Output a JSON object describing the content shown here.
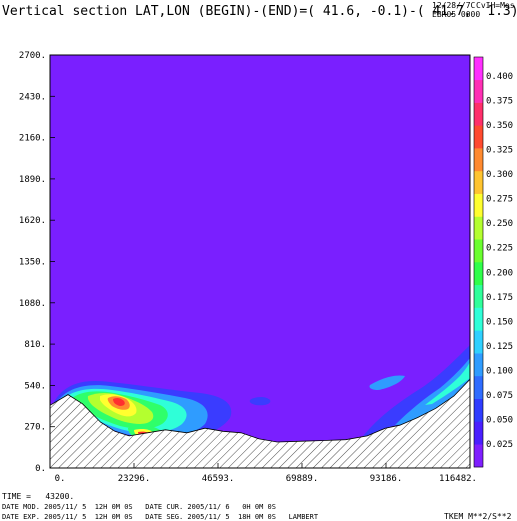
{
  "header": {
    "title": "Vertical section LAT,LON (BEGIN)-(END)=( 41.6, -0.1)-( 41.7,  1.3)",
    "top_right_line1": "12/28//7C",
    "top_right_line2": "EBR05 0000",
    "top_right_line3": "CvIH=Mes"
  },
  "footer": {
    "time": "TIME =   43200.",
    "line1": "DATE MOD. 2005/11/ 5  12H 0M 0S   DATE CUR. 2005/11/ 6   0H 0M 0S",
    "line2": "DATE EXP. 2005/11/ 5  12H 0M 0S   DATE SEG. 2005/11/ 5  18H 0M 0S   LAMBERT",
    "units": "TKEM M**2/S**2"
  },
  "chart_data": {
    "type": "contour",
    "title": "Vertical section LAT,LON (BEGIN)-(END)=( 41.6, -0.1)-( 41.7,  1.3)",
    "variable": "TKEM",
    "units": "M**2/S**2",
    "x_ticks": [
      "0.",
      "23296.",
      "46593.",
      "69889.",
      "93186.",
      "116482."
    ],
    "y_ticks": [
      "0.",
      "270.",
      "540.",
      "810.",
      "1080.",
      "1350.",
      "1620.",
      "1890.",
      "2160.",
      "2430.",
      "2700."
    ],
    "xlim": [
      0,
      116482
    ],
    "ylim": [
      0,
      2700
    ],
    "colorbar": {
      "levels": [
        "0.025",
        "0.050",
        "0.075",
        "0.100",
        "0.125",
        "0.150",
        "0.175",
        "0.200",
        "0.225",
        "0.250",
        "0.275",
        "0.300",
        "0.325",
        "0.350",
        "0.375",
        "0.400"
      ],
      "colors": [
        "#7f1fff",
        "#4a1fff",
        "#2f3cff",
        "#2f6cff",
        "#2f9cff",
        "#2fd0ff",
        "#2fffd8",
        "#2fff9a",
        "#2fff4a",
        "#6aff2f",
        "#b4ff2f",
        "#ffff2f",
        "#ffc42f",
        "#ff8a2f",
        "#ff4a2f",
        "#ff2f6a",
        "#ff2fb4",
        "#ff2fff"
      ]
    },
    "background_color": "#7a1fff",
    "terrain": [
      [
        0,
        410
      ],
      [
        5000,
        480
      ],
      [
        9000,
        420
      ],
      [
        14000,
        300
      ],
      [
        18000,
        240
      ],
      [
        22000,
        210
      ],
      [
        27000,
        230
      ],
      [
        32000,
        250
      ],
      [
        38000,
        230
      ],
      [
        43000,
        260
      ],
      [
        48000,
        240
      ],
      [
        53000,
        230
      ],
      [
        58000,
        190
      ],
      [
        63000,
        170
      ],
      [
        70000,
        175
      ],
      [
        76000,
        180
      ],
      [
        82000,
        185
      ],
      [
        88000,
        210
      ],
      [
        93000,
        260
      ],
      [
        97000,
        280
      ],
      [
        102000,
        330
      ],
      [
        107000,
        390
      ],
      [
        112000,
        470
      ],
      [
        116482,
        580
      ]
    ]
  }
}
